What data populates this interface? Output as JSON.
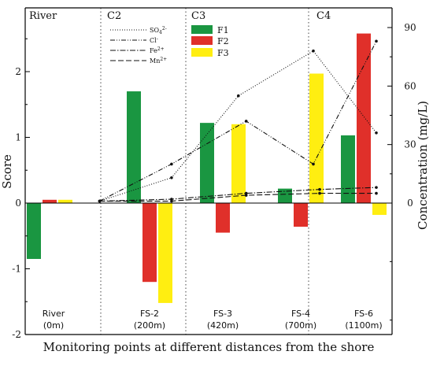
{
  "chart_data": {
    "type": "bar",
    "xlabel": "Monitoring points at different distances from the shore",
    "ylabel": "Score",
    "y2label": "Concentration (mg/L)",
    "ylim": [
      -2,
      3
    ],
    "y2lim": [
      -60,
      105
    ],
    "y_ticks": [
      "-2",
      "-1",
      "0",
      "1",
      "2"
    ],
    "y2_ticks": [
      "0",
      "30",
      "60",
      "90"
    ],
    "regions": [
      "River",
      "C2",
      "C3",
      "C4"
    ],
    "categories": [
      {
        "name": "River",
        "distance": "(0m)"
      },
      {
        "name": "FS-2",
        "distance": "(200m)"
      },
      {
        "name": "FS-3",
        "distance": "(420m)"
      },
      {
        "name": "FS-4",
        "distance": "(700m)"
      },
      {
        "name": "FS-6",
        "distance": "(1100m)"
      }
    ],
    "bar_series": [
      {
        "name": "F1",
        "color": "#1a9641",
        "values": [
          -0.85,
          1.7,
          1.22,
          0.22,
          1.03
        ]
      },
      {
        "name": "F2",
        "color": "#e0302a",
        "values": [
          0.05,
          -1.2,
          -0.45,
          -0.36,
          2.58
        ]
      },
      {
        "name": "F3",
        "color": "#ffee11",
        "values": [
          0.05,
          -1.52,
          1.2,
          1.97,
          -0.18
        ]
      }
    ],
    "line_series": [
      {
        "name": "SO",
        "sup": "4",
        "charge": "2-",
        "style": "dotted",
        "x": [
          0.5,
          1.3,
          2.2,
          3.2,
          4.2
        ],
        "values": [
          1,
          13,
          55,
          78,
          36
        ]
      },
      {
        "name": "Cl",
        "sup": "",
        "charge": "-",
        "style": "dashdotdot",
        "x": [
          0.5,
          1.3,
          2.3,
          3.2,
          4.2
        ],
        "values": [
          1,
          20,
          42,
          20,
          83
        ]
      },
      {
        "name": "Fe",
        "sup": "",
        "charge": "2+",
        "style": "dashdot",
        "x": [
          0.5,
          1.3,
          2.3,
          3.3,
          4.2
        ],
        "values": [
          1,
          2,
          5,
          7,
          8
        ]
      },
      {
        "name": "Mn",
        "sup": "",
        "charge": "2+",
        "style": "dashed",
        "x": [
          0.5,
          1.3,
          2.3,
          3.3,
          4.2
        ],
        "values": [
          1,
          1,
          4,
          5,
          5
        ]
      }
    ]
  }
}
